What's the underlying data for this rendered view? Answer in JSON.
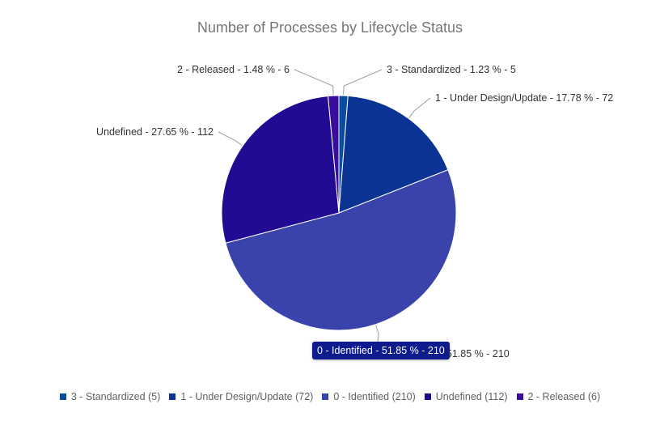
{
  "chart_data": {
    "type": "pie",
    "title": "Number of Processes by Lifecycle Status",
    "slices": [
      {
        "name": "3 - Standardized",
        "value": 5,
        "percent": "1.23 %",
        "color": "#0a4d9e",
        "label": "3 - Standardized - 1.23 % - 5",
        "legend": "3 - Standardized (5)"
      },
      {
        "name": "1 - Under Design/Update",
        "value": 72,
        "percent": "17.78 %",
        "color": "#0b3393",
        "label": "1 - Under Design/Update - 17.78 % - 72",
        "legend": "1 - Under Design/Update (72)"
      },
      {
        "name": "0 - Identified",
        "value": 210,
        "percent": "51.85 %",
        "color": "#3a43ac",
        "label": "0 - Identified - 51.85 % - 210",
        "legend": "0 - Identified (210)"
      },
      {
        "name": "Undefined",
        "value": 112,
        "percent": "27.65 %",
        "color": "#220b93",
        "label": "Undefined - 27.65 % - 112",
        "legend": "Undefined (112)"
      },
      {
        "name": "2 - Released",
        "value": 6,
        "percent": "1.48 %",
        "color": "#3a0e9c",
        "label": "2 - Released - 1.48 % - 6",
        "legend": "2 - Released (6)"
      }
    ],
    "legend_position": "bottom",
    "tooltip": {
      "text": "0 - Identified - 51.85 % - 210",
      "color": "#0d1b8f"
    }
  }
}
